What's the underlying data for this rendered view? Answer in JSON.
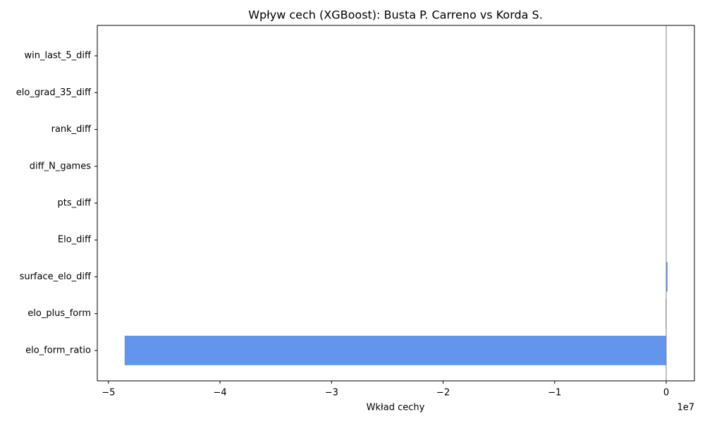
{
  "chart_data": {
    "type": "barh",
    "title": "Wpływ cech (XGBoost): Busta P. Carreno vs Korda S.",
    "x_label": "Wkład cechy",
    "x_offset_label": "1e7",
    "categories": [
      "win_last_5_diff",
      "elo_grad_35_diff",
      "rank_diff",
      "diff_N_games",
      "pts_diff",
      "Elo_diff",
      "surface_elo_diff",
      "elo_plus_form",
      "elo_form_ratio"
    ],
    "values": [
      0,
      0,
      0,
      0,
      0,
      0,
      0.012,
      -0.005,
      -4.855
    ],
    "color": "#6495ed",
    "xlim": [
      -5.1,
      0.253
    ],
    "xticks": [
      {
        "value": -5,
        "label": "−5"
      },
      {
        "value": -4,
        "label": "−4"
      },
      {
        "value": -3,
        "label": "−3"
      },
      {
        "value": -2,
        "label": "−2"
      },
      {
        "value": -1,
        "label": "−1"
      },
      0
    ],
    "grid": false
  }
}
